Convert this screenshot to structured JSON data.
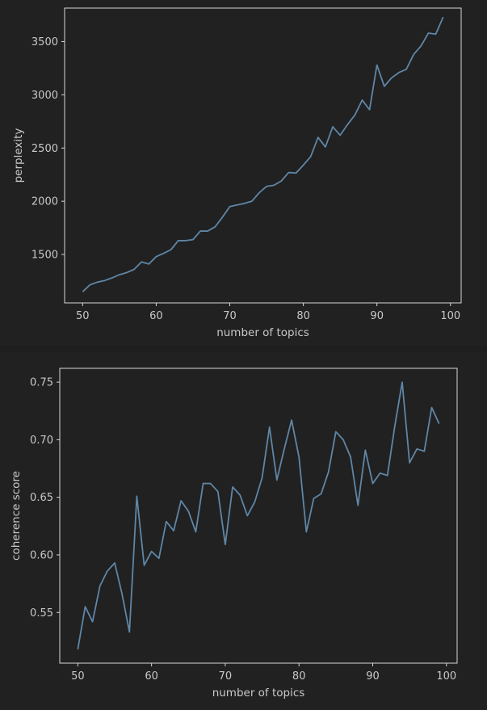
{
  "chart_data": [
    {
      "type": "line",
      "xlabel": "number of topics",
      "ylabel": "perplexity",
      "xlim": [
        47.55,
        101.45
      ],
      "ylim": [
        1045,
        3815
      ],
      "xticks": [
        50,
        60,
        70,
        80,
        90,
        100
      ],
      "yticks": [
        1500,
        2000,
        2500,
        3000,
        3500
      ],
      "grid": false,
      "colors": {
        "line": "#5f86a6"
      },
      "series": [
        {
          "x": [
            50,
            51,
            52,
            53,
            54,
            55,
            56,
            57,
            58,
            59,
            60,
            61,
            62,
            63,
            64,
            65,
            66,
            67,
            68,
            69,
            70,
            71,
            72,
            73,
            74,
            75,
            76,
            77,
            78,
            79,
            80,
            81,
            82,
            83,
            84,
            85,
            86,
            87,
            88,
            89,
            90,
            91,
            92,
            93,
            94,
            95,
            96,
            97,
            98,
            99
          ],
          "values": [
            1150,
            1215,
            1240,
            1255,
            1280,
            1310,
            1330,
            1360,
            1430,
            1410,
            1480,
            1510,
            1545,
            1630,
            1630,
            1640,
            1720,
            1720,
            1760,
            1850,
            1950,
            1965,
            1980,
            2000,
            2080,
            2140,
            2150,
            2190,
            2270,
            2265,
            2340,
            2420,
            2600,
            2510,
            2700,
            2620,
            2720,
            2810,
            2950,
            2860,
            3280,
            3080,
            3160,
            3210,
            3240,
            3380,
            3460,
            3580,
            3570,
            3730
          ]
        }
      ]
    },
    {
      "type": "line",
      "xlabel": "number of topics",
      "ylabel": "coherence score",
      "xlim": [
        47.55,
        101.45
      ],
      "ylim": [
        0.506,
        0.762
      ],
      "xticks": [
        50,
        60,
        70,
        80,
        90,
        100
      ],
      "yticks": [
        0.55,
        0.6,
        0.65,
        0.7,
        0.75
      ],
      "ytick_labels": [
        "0.55",
        "0.60",
        "0.65",
        "0.70",
        "0.75"
      ],
      "grid": false,
      "colors": {
        "line": "#5f86a6"
      },
      "series": [
        {
          "x": [
            50,
            51,
            52,
            53,
            54,
            55,
            56,
            57,
            58,
            59,
            60,
            61,
            62,
            63,
            64,
            65,
            66,
            67,
            68,
            69,
            70,
            71,
            72,
            73,
            74,
            75,
            76,
            77,
            78,
            79,
            80,
            81,
            82,
            83,
            84,
            85,
            86,
            87,
            88,
            89,
            90,
            91,
            92,
            93,
            94,
            95,
            96,
            97,
            98,
            99
          ],
          "values": [
            0.518,
            0.555,
            0.542,
            0.573,
            0.586,
            0.593,
            0.566,
            0.533,
            0.651,
            0.591,
            0.603,
            0.597,
            0.629,
            0.621,
            0.647,
            0.638,
            0.62,
            0.662,
            0.662,
            0.655,
            0.609,
            0.659,
            0.652,
            0.634,
            0.646,
            0.667,
            0.711,
            0.665,
            0.692,
            0.717,
            0.685,
            0.62,
            0.649,
            0.653,
            0.672,
            0.707,
            0.7,
            0.685,
            0.643,
            0.691,
            0.662,
            0.671,
            0.669,
            0.712,
            0.75,
            0.68,
            0.692,
            0.69,
            0.728,
            0.714
          ]
        }
      ]
    }
  ]
}
